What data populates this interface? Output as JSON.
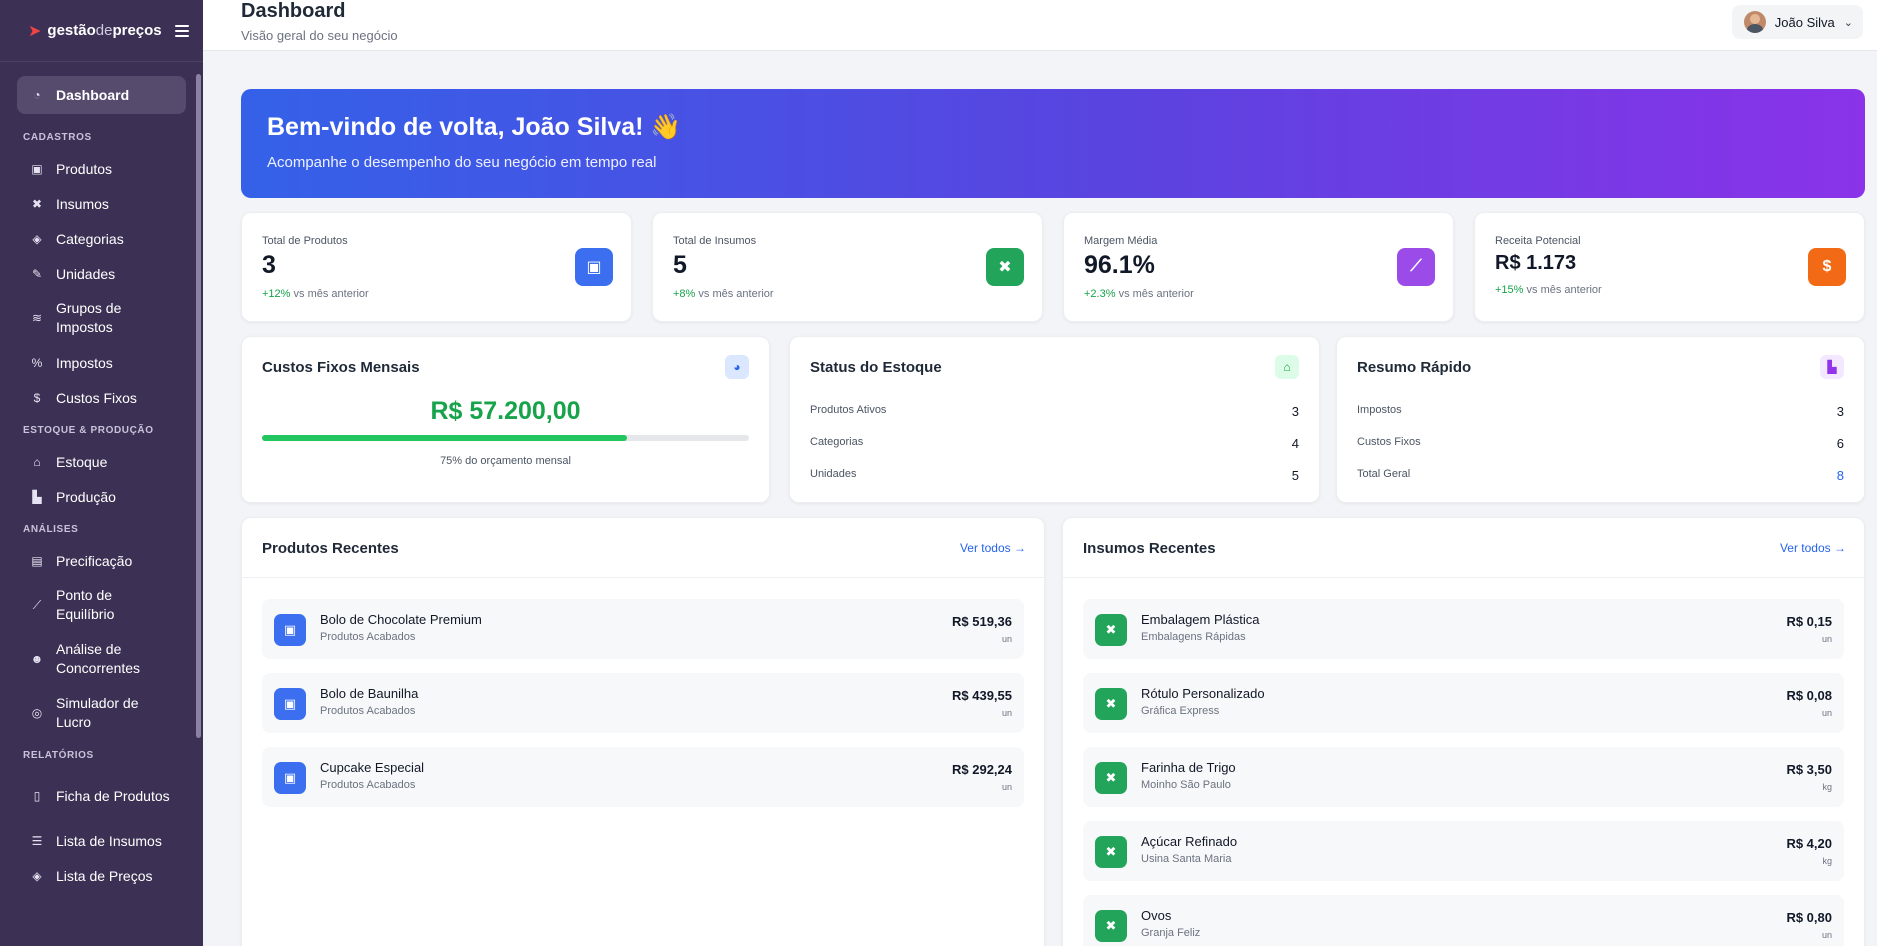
{
  "app": {
    "logo_a": "gestão",
    "logo_b": "de",
    "logo_c": "preços"
  },
  "header": {
    "title": "Dashboard",
    "subtitle": "Visão geral do seu negócio",
    "user_name": "João Silva"
  },
  "sidebar": {
    "dashboard": "Dashboard",
    "sections": {
      "cadastros": "CADASTROS",
      "estoque": "ESTOQUE & PRODUÇÃO",
      "analises": "ANÁLISES",
      "relatorios": "RELATÓRIOS"
    },
    "cadastros": [
      "Produtos",
      "Insumos",
      "Categorias",
      "Unidades",
      "Grupos de Impostos",
      "Impostos",
      "Custos Fixos"
    ],
    "estoque": [
      "Estoque",
      "Produção"
    ],
    "analises": [
      "Precificação",
      "Ponto de Equilíbrio",
      "Análise de Concorrentes",
      "Simulador de Lucro"
    ],
    "relatorios": [
      "Ficha de Produtos",
      "Lista de Insumos",
      "Lista de Preços"
    ]
  },
  "hero": {
    "title": "Bem-vindo de volta, João Silva! 👋",
    "subtitle": "Acompanhe o desempenho do seu negócio em tempo real"
  },
  "stats": [
    {
      "label": "Total de Produtos",
      "value": "3",
      "trend": "+12%",
      "trend_suffix": "vs mês anterior",
      "color": "#3b6ff0",
      "icon": "box-icon"
    },
    {
      "label": "Total de Insumos",
      "value": "5",
      "trend": "+8%",
      "trend_suffix": "vs mês anterior",
      "color": "#22a55a",
      "icon": "tools-icon"
    },
    {
      "label": "Margem Média",
      "value": "96.1%",
      "trend": "+2.3%",
      "trend_suffix": "vs mês anterior",
      "color": "#9b4be8",
      "icon": "chart-line-icon"
    },
    {
      "label": "Receita Potencial",
      "value": "R$ 1.173",
      "trend": "+15%",
      "trend_suffix": "vs mês anterior",
      "color": "#f26a15",
      "icon": "dollar-icon"
    }
  ],
  "custos": {
    "title": "Custos Fixos Mensais",
    "value": "R$ 57.200,00",
    "progress": 0.75,
    "note": "75% do orçamento mensal"
  },
  "estoque_status": {
    "title": "Status do Estoque",
    "rows": [
      {
        "label": "Produtos Ativos",
        "value": "3"
      },
      {
        "label": "Categorias",
        "value": "4"
      },
      {
        "label": "Unidades",
        "value": "5"
      }
    ]
  },
  "resumo": {
    "title": "Resumo Rápido",
    "rows": [
      {
        "label": "Impostos",
        "value": "3"
      },
      {
        "label": "Custos Fixos",
        "value": "6"
      },
      {
        "label": "Total Geral",
        "value": "8"
      }
    ]
  },
  "produtos_recentes": {
    "title": "Produtos Recentes",
    "link": "Ver todos →",
    "items": [
      {
        "name": "Bolo de Chocolate Premium",
        "category": "Produtos Acabados",
        "price": "R$ 519,36",
        "unit": "un"
      },
      {
        "name": "Bolo de Baunilha",
        "category": "Produtos Acabados",
        "price": "R$ 439,55",
        "unit": "un"
      },
      {
        "name": "Cupcake Especial",
        "category": "Produtos Acabados",
        "price": "R$ 292,24",
        "unit": "un"
      }
    ]
  },
  "insumos_recentes": {
    "title": "Insumos Recentes",
    "link": "Ver todos →",
    "items": [
      {
        "name": "Embalagem Plástica",
        "supplier": "Embalagens Rápidas",
        "price": "R$ 0,15",
        "unit": "un"
      },
      {
        "name": "Rótulo Personalizado",
        "supplier": "Gráfica Express",
        "price": "R$ 0,08",
        "unit": "un"
      },
      {
        "name": "Farinha de Trigo",
        "supplier": "Moinho São Paulo",
        "price": "R$ 3,50",
        "unit": "kg"
      },
      {
        "name": "Açúcar Refinado",
        "supplier": "Usina Santa Maria",
        "price": "R$ 4,20",
        "unit": "kg"
      },
      {
        "name": "Ovos",
        "supplier": "Granja Feliz",
        "price": "R$ 0,80",
        "unit": "un"
      }
    ]
  }
}
